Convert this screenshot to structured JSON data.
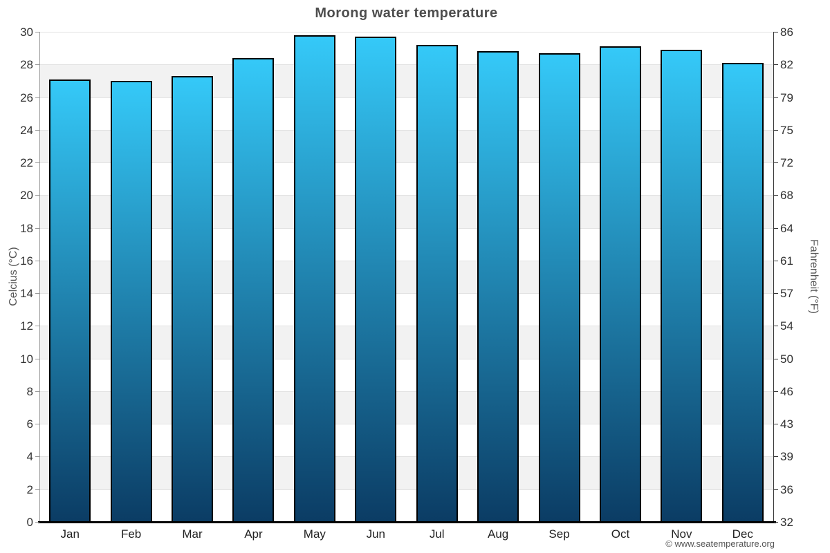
{
  "title": "Morong water temperature",
  "copyright": "© www.seatemperature.org",
  "chart_data": {
    "type": "bar",
    "title": "Morong water temperature",
    "categories": [
      "Jan",
      "Feb",
      "Mar",
      "Apr",
      "May",
      "Jun",
      "Jul",
      "Aug",
      "Sep",
      "Oct",
      "Nov",
      "Dec"
    ],
    "values": [
      27.1,
      27.0,
      27.3,
      28.4,
      29.8,
      29.7,
      29.2,
      28.8,
      28.7,
      29.1,
      28.9,
      28.1
    ],
    "ylabel_left": "Celcius (°C)",
    "ylabel_right": "Fahrenheit (°F)",
    "ylim": [
      0,
      30
    ],
    "ytick_step": 2,
    "yticks_left": [
      30,
      28,
      26,
      24,
      22,
      20,
      18,
      16,
      14,
      12,
      10,
      8,
      6,
      4,
      2,
      0
    ],
    "yticks_right": [
      86,
      82,
      79,
      75,
      72,
      68,
      64,
      61,
      57,
      54,
      50,
      46,
      43,
      39,
      36,
      32
    ],
    "grid": "alternating-bands",
    "legend": "none",
    "colors": {
      "bar_top": "#35c9f8",
      "bar_bottom": "#0b3c64",
      "bar_border": "#000000",
      "band": "#f2f2f2",
      "grid_line": "#e2e2e2",
      "axis_left": "#999999",
      "axis_right": "#333333",
      "axis_bottom": "#000000",
      "tick_text": "#333333",
      "title_text": "#4d4d4d"
    }
  }
}
